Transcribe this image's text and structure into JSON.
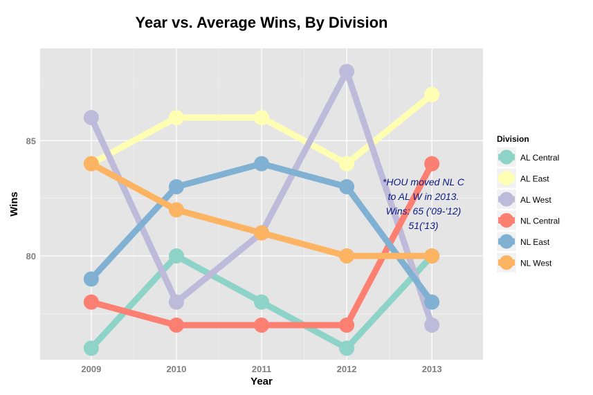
{
  "chart_data": {
    "type": "line",
    "title": "Year vs. Average Wins, By Division",
    "xlabel": "Year",
    "ylabel": "Wins",
    "x": [
      2009,
      2010,
      2011,
      2012,
      2013
    ],
    "x_tick_labels": [
      "2009",
      "2010",
      "2011",
      "2012",
      "2013"
    ],
    "ylim": [
      75.5,
      89
    ],
    "y_ticks": [
      80,
      85
    ],
    "y_tick_labels": [
      "80",
      "85"
    ],
    "grid": true,
    "legend_title": "Division",
    "legend_position": "right",
    "series": [
      {
        "name": "AL Central",
        "color": "#8dd3c7",
        "values": [
          76,
          80,
          78,
          76,
          80
        ]
      },
      {
        "name": "AL East",
        "color": "#ffffb3",
        "values": [
          84,
          86,
          86,
          84,
          87
        ]
      },
      {
        "name": "AL West",
        "color": "#bebada",
        "values": [
          86,
          78,
          81,
          88,
          77
        ]
      },
      {
        "name": "NL Central",
        "color": "#fb8072",
        "values": [
          78,
          77,
          77,
          77,
          84
        ]
      },
      {
        "name": "NL East",
        "color": "#80b1d3",
        "values": [
          79,
          83,
          84,
          83,
          78
        ]
      },
      {
        "name": "NL West",
        "color": "#fdb462",
        "values": [
          84,
          82,
          81,
          80,
          80
        ]
      }
    ],
    "annotation": {
      "lines": [
        "*HOU moved NL C",
        "to AL W in 2013.",
        "Wins: 65 ('09-'12)",
        "51('13)"
      ],
      "color": "#0b1a80"
    }
  },
  "colors": {
    "panel_background": "#e5e5e5",
    "grid": "#ffffff"
  }
}
